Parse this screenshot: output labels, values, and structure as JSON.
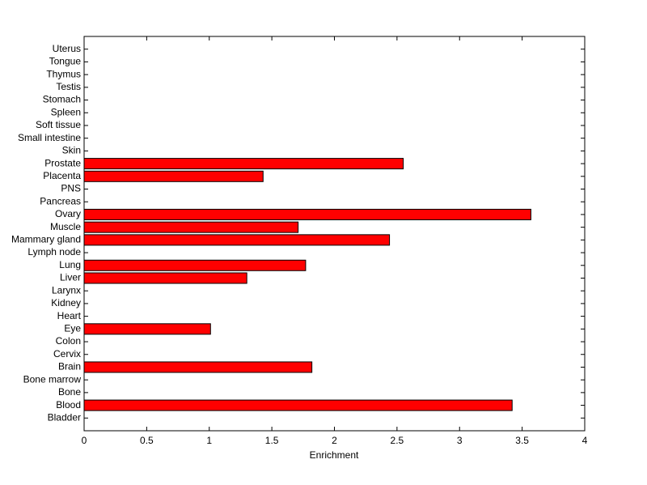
{
  "chart_data": {
    "type": "barh",
    "xlabel": "Enrichment",
    "categories": [
      "Bladder",
      "Blood",
      "Bone",
      "Bone marrow",
      "Brain",
      "Cervix",
      "Colon",
      "Eye",
      "Heart",
      "Kidney",
      "Larynx",
      "Liver",
      "Lung",
      "Lymph node",
      "Mammary gland",
      "Muscle",
      "Ovary",
      "Pancreas",
      "PNS",
      "Placenta",
      "Prostate",
      "Skin",
      "Small intestine",
      "Soft tissue",
      "Spleen",
      "Stomach",
      "Testis",
      "Thymus",
      "Tongue",
      "Uterus"
    ],
    "values": [
      0,
      3.42,
      0,
      0,
      1.82,
      0,
      0,
      1.01,
      0,
      0,
      0,
      1.3,
      1.77,
      0,
      2.44,
      1.71,
      3.57,
      0,
      0,
      1.43,
      2.55,
      0,
      0,
      0,
      0,
      0,
      0,
      0,
      0,
      0
    ],
    "color": "#ff0000",
    "xlim": [
      0,
      4
    ],
    "xticks": [
      0,
      0.5,
      1,
      1.5,
      2,
      2.5,
      3,
      3.5,
      4
    ]
  }
}
